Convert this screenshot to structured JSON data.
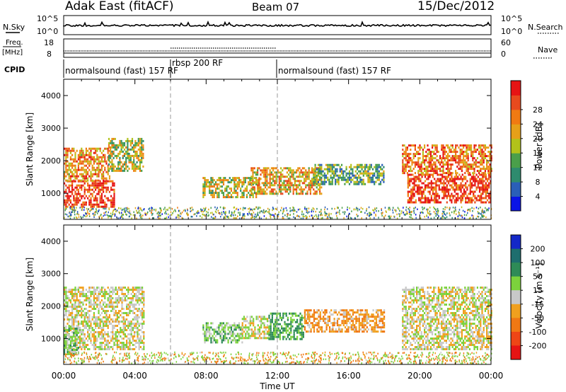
{
  "header": {
    "station": "Adak East (fitACF)",
    "beam": "Beam 07",
    "date": "15/Dec/2012"
  },
  "status_panels": {
    "nsky_label": "N.Sky",
    "nsky_ticks": [
      "10^5",
      "10^0"
    ],
    "nsearch_label": "N.Search",
    "nsearch_ticks": [
      "10^5",
      "10^0"
    ],
    "freq_label_1": "Freq.",
    "freq_label_2": "[MHz]",
    "freq_ticks": [
      "18",
      "8"
    ],
    "nave_label": "Nave",
    "nave_ticks": [
      "60",
      "0"
    ],
    "cpid_label": "CPID",
    "cpid_segments": [
      {
        "label": "normalsound (fast) 157 RF",
        "start": 0,
        "end": 6
      },
      {
        "label": "rbsp 200 RF",
        "start": 6,
        "end": 12
      },
      {
        "label": "normalsound (fast) 157 RF",
        "start": 12,
        "end": 24
      }
    ]
  },
  "chart_data": [
    {
      "type": "heatmap",
      "name": "power",
      "ylabel": "Slant Range [km]",
      "xlabel": "Time UT",
      "xlim": [
        0,
        24
      ],
      "ylim": [
        200,
        4500
      ],
      "x_ticks": [
        "00:00",
        "04:00",
        "08:00",
        "12:00",
        "16:00",
        "20:00",
        "00:00"
      ],
      "y_ticks": [
        1000,
        2000,
        3000,
        4000
      ],
      "colorbar": {
        "label": "Power [dB]",
        "ticks": [
          4,
          8,
          12,
          16,
          20,
          24,
          28
        ],
        "colors": [
          "#0a14e6",
          "#2a5fb8",
          "#2e8b6e",
          "#4a9f4a",
          "#b2c21a",
          "#e6a019",
          "#f07a12",
          "#e84a1e",
          "#e61414"
        ]
      },
      "mode_boundaries": [
        6,
        12
      ],
      "echo_regions": [
        {
          "t0": 0.0,
          "t1": 2.8,
          "r0": 600,
          "r1": 1400,
          "level": 28
        },
        {
          "t0": 0.0,
          "t1": 2.6,
          "r0": 1400,
          "r1": 2400,
          "level": 22
        },
        {
          "t0": 2.5,
          "t1": 4.5,
          "r0": 1700,
          "r1": 2700,
          "level": 16
        },
        {
          "t0": 7.8,
          "t1": 11.0,
          "r0": 900,
          "r1": 1500,
          "level": 16
        },
        {
          "t0": 10.5,
          "t1": 14.5,
          "r0": 1000,
          "r1": 1800,
          "level": 20
        },
        {
          "t0": 14.0,
          "t1": 18.0,
          "r0": 1300,
          "r1": 1900,
          "level": 12
        },
        {
          "t0": 19.3,
          "t1": 24.0,
          "r0": 700,
          "r1": 1600,
          "level": 28
        },
        {
          "t0": 19.0,
          "t1": 24.0,
          "r0": 1600,
          "r1": 2500,
          "level": 24
        }
      ]
    },
    {
      "type": "heatmap",
      "name": "velocity",
      "ylabel": "Slant Range [km]",
      "xlabel": "Time UT",
      "xlim": [
        0,
        24
      ],
      "ylim": [
        200,
        4500
      ],
      "x_ticks": [
        "00:00",
        "04:00",
        "08:00",
        "12:00",
        "16:00",
        "20:00",
        "00:00"
      ],
      "y_ticks": [
        1000,
        2000,
        3000,
        4000
      ],
      "colorbar": {
        "label": "Velocity [m s⁻¹]",
        "ticks": [
          200,
          100,
          50,
          15,
          -15,
          -50,
          -100,
          -200
        ],
        "colors": [
          "#1428c8",
          "#1e6e6e",
          "#2e8b57",
          "#7cd23c",
          "#c8c8c8",
          "#f0a01e",
          "#f07814",
          "#ee4616",
          "#e61414"
        ]
      },
      "mode_boundaries": [
        6,
        12
      ],
      "echo_regions": [
        {
          "t0": 0.0,
          "t1": 4.5,
          "r0": 700,
          "r1": 2600,
          "level": 0
        },
        {
          "t0": 0.0,
          "t1": 0.8,
          "r0": 500,
          "r1": 1400,
          "level": 30
        },
        {
          "t0": 7.8,
          "t1": 10.0,
          "r0": 900,
          "r1": 1500,
          "level": 30
        },
        {
          "t0": 10.0,
          "t1": 11.5,
          "r0": 1000,
          "r1": 1700,
          "level": 0
        },
        {
          "t0": 11.5,
          "t1": 13.5,
          "r0": 1000,
          "r1": 1800,
          "level": 60
        },
        {
          "t0": 13.5,
          "t1": 18.0,
          "r0": 1200,
          "r1": 1900,
          "level": -40
        },
        {
          "t0": 19.0,
          "t1": 24.0,
          "r0": 700,
          "r1": 2600,
          "level": 0
        }
      ]
    }
  ]
}
